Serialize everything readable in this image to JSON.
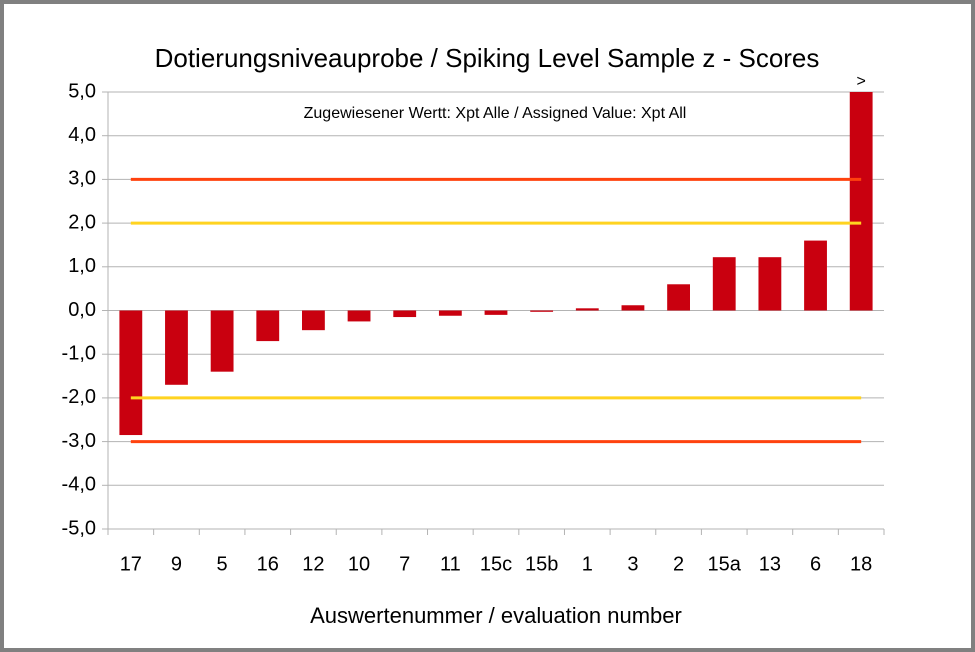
{
  "chart_data": {
    "type": "bar",
    "title": "Dotierungsniveauprobe / Spiking Level Sample z - Scores",
    "annotation": "Zugewiesener Wertt: Xpt Alle / Assigned Value: Xpt All",
    "overflow_marker": ">",
    "x_label": "Auswertenummer / evaluation number",
    "categories": [
      "17",
      "9",
      "5",
      "16",
      "12",
      "10",
      "7",
      "11",
      "15c",
      "15b",
      "1",
      "3",
      "2",
      "15a",
      "13",
      "6",
      "18"
    ],
    "values": [
      -2.85,
      -1.7,
      -1.4,
      -0.7,
      -0.45,
      -0.25,
      -0.15,
      -0.12,
      -0.1,
      -0.03,
      0.05,
      0.12,
      0.6,
      1.22,
      1.22,
      1.6,
      5.0
    ],
    "color": "#c9000f",
    "ylim": [
      -5,
      5
    ],
    "yticks": [
      {
        "value": -5,
        "label": "-5,0"
      },
      {
        "value": -4,
        "label": "-4,0"
      },
      {
        "value": -3,
        "label": "-3,0"
      },
      {
        "value": -2,
        "label": "-2,0"
      },
      {
        "value": -1,
        "label": "-1,0"
      },
      {
        "value": 0,
        "label": "0,0"
      },
      {
        "value": 1,
        "label": "1,0"
      },
      {
        "value": 2,
        "label": "2,0"
      },
      {
        "value": 3,
        "label": "3,0"
      },
      {
        "value": 4,
        "label": "4,0"
      },
      {
        "value": 5,
        "label": "5,0"
      }
    ],
    "grid": true,
    "reference_lines": [
      {
        "value": 3,
        "color": "#ff420e"
      },
      {
        "value": 2,
        "color": "#ffd320"
      },
      {
        "value": -2,
        "color": "#ffd320"
      },
      {
        "value": -3,
        "color": "#ff420e"
      }
    ]
  }
}
